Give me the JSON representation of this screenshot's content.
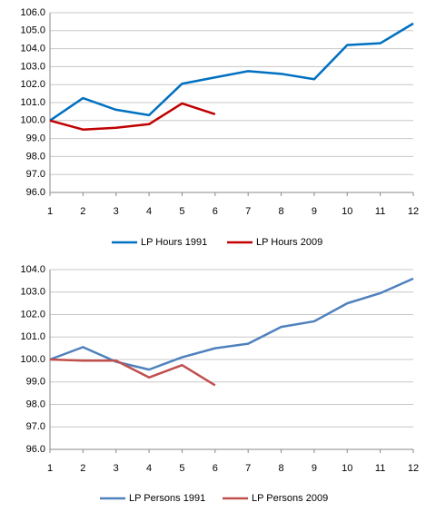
{
  "chart_data": [
    {
      "type": "line",
      "x": [
        1,
        2,
        3,
        4,
        5,
        6,
        7,
        8,
        9,
        10,
        11,
        12
      ],
      "xlim": [
        1,
        12
      ],
      "xticks": [
        1,
        2,
        3,
        4,
        5,
        6,
        7,
        8,
        9,
        10,
        11,
        12
      ],
      "ylim": [
        96,
        106
      ],
      "yticks": [
        {
          "value": 96,
          "label": "96.0"
        },
        {
          "value": 97,
          "label": "97.0"
        },
        {
          "value": 98,
          "label": "98.0"
        },
        {
          "value": 99,
          "label": "99.0"
        },
        {
          "value": 100,
          "label": "100.0"
        },
        {
          "value": 101,
          "label": "101.0"
        },
        {
          "value": 102,
          "label": "102.0"
        },
        {
          "value": 103,
          "label": "103.0"
        },
        {
          "value": 104,
          "label": "104.0"
        },
        {
          "value": 105,
          "label": "105.0"
        },
        {
          "value": 106,
          "label": "106.0"
        }
      ],
      "grid": true,
      "legend": "bottom",
      "series": [
        {
          "name": "LP Hours 1991",
          "color": "#0070c0",
          "values": [
            100.0,
            101.25,
            100.6,
            100.3,
            102.05,
            102.4,
            102.75,
            102.6,
            102.3,
            104.2,
            104.3,
            105.4
          ]
        },
        {
          "name": "LP Hours 2009",
          "color": "#c00000",
          "values": [
            100.0,
            99.5,
            99.6,
            99.8,
            100.95,
            100.35,
            null,
            null,
            null,
            null,
            null,
            null
          ]
        }
      ]
    },
    {
      "type": "line",
      "x": [
        1,
        2,
        3,
        4,
        5,
        6,
        7,
        8,
        9,
        10,
        11,
        12
      ],
      "xlim": [
        1,
        12
      ],
      "xticks": [
        1,
        2,
        3,
        4,
        5,
        6,
        7,
        8,
        9,
        10,
        11,
        12
      ],
      "ylim": [
        96,
        104
      ],
      "yticks": [
        {
          "value": 96,
          "label": "96.0"
        },
        {
          "value": 97,
          "label": "97.0"
        },
        {
          "value": 98,
          "label": "98.0"
        },
        {
          "value": 99,
          "label": "99.0"
        },
        {
          "value": 100,
          "label": "100.0"
        },
        {
          "value": 101,
          "label": "101.0"
        },
        {
          "value": 102,
          "label": "102.0"
        },
        {
          "value": 103,
          "label": "103.0"
        },
        {
          "value": 104,
          "label": "104.0"
        }
      ],
      "grid": true,
      "legend": "bottom",
      "series": [
        {
          "name": "LP Persons 1991",
          "color": "#4f81bd",
          "values": [
            100.0,
            100.55,
            99.9,
            99.55,
            100.1,
            100.5,
            100.7,
            101.45,
            101.7,
            102.5,
            102.95,
            103.6
          ]
        },
        {
          "name": "LP Persons 2009",
          "color": "#c0504d",
          "values": [
            100.0,
            99.95,
            99.95,
            99.2,
            99.75,
            98.85,
            null,
            null,
            null,
            null,
            null,
            null
          ]
        }
      ]
    }
  ]
}
